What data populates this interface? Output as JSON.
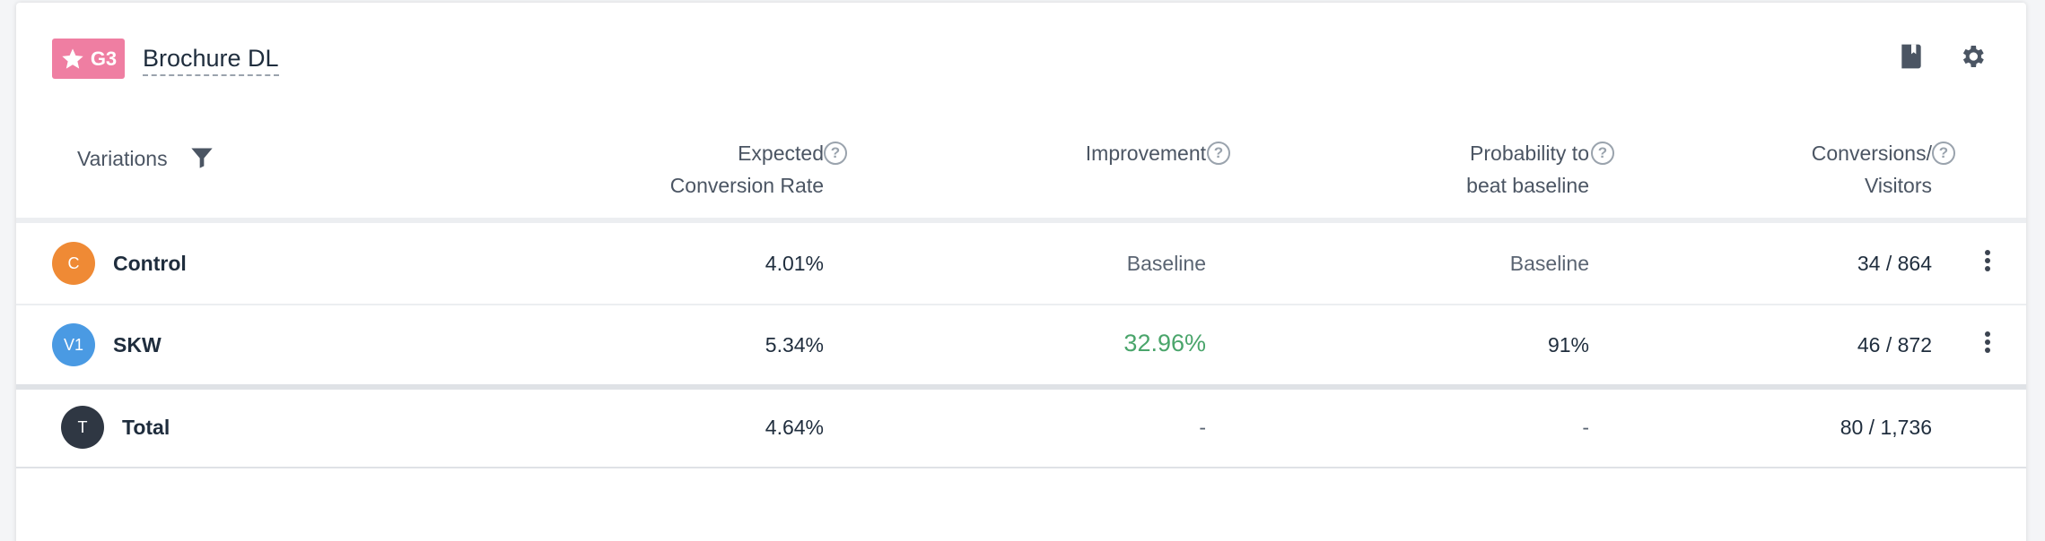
{
  "header": {
    "badge_label": "G3",
    "title": "Brochure DL"
  },
  "columns": {
    "variations": "Variations",
    "expected_line1": "Expected",
    "expected_line2": "Conversion Rate",
    "improvement": "Improvement",
    "probability_line1": "Probability to",
    "probability_line2": "beat baseline",
    "conversions_line1": "Conversions/",
    "conversions_line2": "Visitors",
    "help_glyph": "?"
  },
  "rows": [
    {
      "avatar": "C",
      "avatar_color": "#ef8a35",
      "name": "Control",
      "rate": "4.01%",
      "improvement": "Baseline",
      "probability": "Baseline",
      "conversions": "34 / 864"
    },
    {
      "avatar": "V1",
      "avatar_color": "#4a9ae3",
      "name": "SKW",
      "rate": "5.34%",
      "improvement": "32.96%",
      "probability": "91%",
      "conversions": "46 / 872"
    }
  ],
  "total": {
    "avatar": "T",
    "avatar_color": "#2f3743",
    "name": "Total",
    "rate": "4.64%",
    "improvement": "-",
    "probability": "-",
    "conversions": "80 / 1,736"
  },
  "colors": {
    "badge": "#ef7ea2",
    "positive": "#4aa56b"
  }
}
